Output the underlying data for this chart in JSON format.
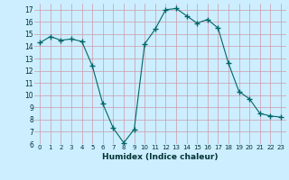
{
  "x": [
    0,
    1,
    2,
    3,
    4,
    5,
    6,
    7,
    8,
    9,
    10,
    11,
    12,
    13,
    14,
    15,
    16,
    17,
    18,
    19,
    20,
    21,
    22,
    23
  ],
  "y": [
    14.3,
    14.8,
    14.5,
    14.6,
    14.4,
    12.4,
    9.3,
    7.3,
    6.1,
    7.2,
    14.2,
    15.4,
    17.0,
    17.1,
    16.5,
    15.9,
    16.2,
    15.5,
    12.6,
    10.3,
    9.7,
    8.5,
    8.3,
    8.2
  ],
  "line_color": "#006666",
  "marker": "+",
  "marker_size": 4,
  "bg_color": "#cceeff",
  "grid_color": "#cc99aa",
  "xlabel": "Humidex (Indice chaleur)",
  "xlim": [
    -0.5,
    23.5
  ],
  "ylim": [
    6,
    17.5
  ],
  "yticks": [
    6,
    7,
    8,
    9,
    10,
    11,
    12,
    13,
    14,
    15,
    16,
    17
  ],
  "xticks": [
    0,
    1,
    2,
    3,
    4,
    5,
    6,
    7,
    8,
    9,
    10,
    11,
    12,
    13,
    14,
    15,
    16,
    17,
    18,
    19,
    20,
    21,
    22,
    23
  ],
  "xtick_labels": [
    "0",
    "1",
    "2",
    "3",
    "4",
    "5",
    "6",
    "7",
    "8",
    "9",
    "10",
    "11",
    "12",
    "13",
    "14",
    "15",
    "16",
    "17",
    "18",
    "19",
    "20",
    "21",
    "22",
    "23"
  ]
}
